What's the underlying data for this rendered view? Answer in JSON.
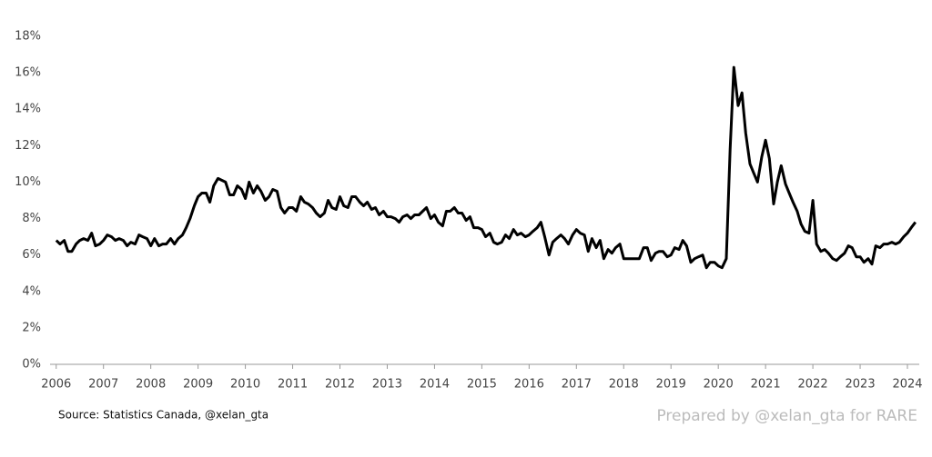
{
  "chart_data": {
    "type": "line",
    "source": "Source: Statistics Canada, @xelan_gta",
    "credit": "Prepared by @xelan_gta for RARE",
    "color": "#000000",
    "xlim": [
      2005.87,
      2024.25
    ],
    "xticks": [
      2006,
      2007,
      2008,
      2009,
      2010,
      2011,
      2012,
      2013,
      2014,
      2015,
      2016,
      2017,
      2018,
      2019,
      2020,
      2021,
      2022,
      2023,
      2024
    ],
    "ylim": [
      0,
      18
    ],
    "yticks": [
      {
        "value": 0,
        "label": "0%"
      },
      {
        "value": 2,
        "label": "2%"
      },
      {
        "value": 4,
        "label": "4%"
      },
      {
        "value": 6,
        "label": "6%"
      },
      {
        "value": 8,
        "label": "8%"
      },
      {
        "value": 10,
        "label": "10%"
      },
      {
        "value": 12,
        "label": "12%"
      },
      {
        "value": 14,
        "label": "14%"
      },
      {
        "value": 16,
        "label": "16%"
      },
      {
        "value": 18,
        "label": "18%"
      }
    ],
    "grid": false,
    "x": [
      2006.0,
      2006.08,
      2006.17,
      2006.25,
      2006.33,
      2006.42,
      2006.5,
      2006.58,
      2006.67,
      2006.75,
      2006.83,
      2006.92,
      2007.0,
      2007.08,
      2007.17,
      2007.25,
      2007.33,
      2007.42,
      2007.5,
      2007.58,
      2007.67,
      2007.75,
      2007.83,
      2007.92,
      2008.0,
      2008.08,
      2008.17,
      2008.25,
      2008.33,
      2008.42,
      2008.5,
      2008.58,
      2008.67,
      2008.75,
      2008.83,
      2008.92,
      2009.0,
      2009.08,
      2009.17,
      2009.25,
      2009.33,
      2009.42,
      2009.5,
      2009.58,
      2009.67,
      2009.75,
      2009.83,
      2009.92,
      2010.0,
      2010.08,
      2010.17,
      2010.25,
      2010.33,
      2010.42,
      2010.5,
      2010.58,
      2010.67,
      2010.75,
      2010.83,
      2010.92,
      2011.0,
      2011.08,
      2011.17,
      2011.25,
      2011.33,
      2011.42,
      2011.5,
      2011.58,
      2011.67,
      2011.75,
      2011.83,
      2011.92,
      2012.0,
      2012.08,
      2012.17,
      2012.25,
      2012.33,
      2012.42,
      2012.5,
      2012.58,
      2012.67,
      2012.75,
      2012.83,
      2012.92,
      2013.0,
      2013.08,
      2013.17,
      2013.25,
      2013.33,
      2013.42,
      2013.5,
      2013.58,
      2013.67,
      2013.75,
      2013.83,
      2013.92,
      2014.0,
      2014.08,
      2014.17,
      2014.25,
      2014.33,
      2014.42,
      2014.5,
      2014.58,
      2014.67,
      2014.75,
      2014.83,
      2014.92,
      2015.0,
      2015.08,
      2015.17,
      2015.25,
      2015.33,
      2015.42,
      2015.5,
      2015.58,
      2015.67,
      2015.75,
      2015.83,
      2015.92,
      2016.0,
      2016.08,
      2016.17,
      2016.25,
      2016.33,
      2016.42,
      2016.5,
      2016.58,
      2016.67,
      2016.75,
      2016.83,
      2016.92,
      2017.0,
      2017.08,
      2017.17,
      2017.25,
      2017.33,
      2017.42,
      2017.5,
      2017.58,
      2017.67,
      2017.75,
      2017.83,
      2017.92,
      2018.0,
      2018.08,
      2018.17,
      2018.25,
      2018.33,
      2018.42,
      2018.5,
      2018.58,
      2018.67,
      2018.75,
      2018.83,
      2018.92,
      2019.0,
      2019.08,
      2019.17,
      2019.25,
      2019.33,
      2019.42,
      2019.5,
      2019.58,
      2019.67,
      2019.75,
      2019.83,
      2019.92,
      2020.0,
      2020.08,
      2020.17,
      2020.25,
      2020.33,
      2020.42,
      2020.5,
      2020.58,
      2020.67,
      2020.75,
      2020.83,
      2020.92,
      2021.0,
      2021.08,
      2021.17,
      2021.25,
      2021.33,
      2021.42,
      2021.5,
      2021.58,
      2021.67,
      2021.75,
      2021.83,
      2021.92,
      2022.0,
      2022.08,
      2022.17,
      2022.25,
      2022.33,
      2022.42,
      2022.5,
      2022.58,
      2022.67,
      2022.75,
      2022.83,
      2022.92,
      2023.0,
      2023.08,
      2023.17,
      2023.25,
      2023.33,
      2023.42,
      2023.5,
      2023.58,
      2023.67,
      2023.75,
      2023.83,
      2023.92,
      2024.0,
      2024.08,
      2024.17
    ],
    "values": [
      6.8,
      6.6,
      6.8,
      6.2,
      6.2,
      6.6,
      6.8,
      6.9,
      6.8,
      7.2,
      6.5,
      6.6,
      6.8,
      7.1,
      7.0,
      6.8,
      6.9,
      6.8,
      6.5,
      6.7,
      6.6,
      7.1,
      7.0,
      6.9,
      6.5,
      6.9,
      6.5,
      6.6,
      6.6,
      6.9,
      6.6,
      6.9,
      7.1,
      7.5,
      8.0,
      8.7,
      9.2,
      9.4,
      9.4,
      8.9,
      9.8,
      10.2,
      10.1,
      10.0,
      9.3,
      9.3,
      9.8,
      9.6,
      9.1,
      10.0,
      9.4,
      9.8,
      9.5,
      9.0,
      9.2,
      9.6,
      9.5,
      8.6,
      8.3,
      8.6,
      8.6,
      8.4,
      9.2,
      8.9,
      8.8,
      8.6,
      8.3,
      8.1,
      8.3,
      9.0,
      8.6,
      8.5,
      9.2,
      8.7,
      8.6,
      9.2,
      9.2,
      8.9,
      8.7,
      8.9,
      8.5,
      8.6,
      8.2,
      8.4,
      8.1,
      8.1,
      8.0,
      7.8,
      8.1,
      8.2,
      8.0,
      8.2,
      8.2,
      8.4,
      8.6,
      8.0,
      8.2,
      7.8,
      7.6,
      8.4,
      8.4,
      8.6,
      8.3,
      8.3,
      7.9,
      8.1,
      7.5,
      7.5,
      7.4,
      7.0,
      7.2,
      6.7,
      6.6,
      6.7,
      7.1,
      6.9,
      7.4,
      7.1,
      7.2,
      7.0,
      7.1,
      7.3,
      7.5,
      7.8,
      7.0,
      6.0,
      6.7,
      6.9,
      7.1,
      6.9,
      6.6,
      7.1,
      7.4,
      7.2,
      7.1,
      6.2,
      6.9,
      6.4,
      6.8,
      5.8,
      6.3,
      6.1,
      6.4,
      6.6,
      5.8,
      5.8,
      5.8,
      5.8,
      5.8,
      6.4,
      6.4,
      5.7,
      6.1,
      6.2,
      6.2,
      5.9,
      6.0,
      6.4,
      6.3,
      6.8,
      6.5,
      5.6,
      5.8,
      5.9,
      6.0,
      5.3,
      5.6,
      5.6,
      5.4,
      5.3,
      5.8,
      11.8,
      16.3,
      14.2,
      14.9,
      12.7,
      11.0,
      10.5,
      10.0,
      11.4,
      12.3,
      11.3,
      8.8,
      10.0,
      10.9,
      9.9,
      9.4,
      8.9,
      8.4,
      7.7,
      7.3,
      7.2,
      9.0,
      6.6,
      6.2,
      6.3,
      6.1,
      5.8,
      5.7,
      5.9,
      6.1,
      6.5,
      6.4,
      5.9,
      5.9,
      5.6,
      5.8,
      5.5,
      6.5,
      6.4,
      6.6,
      6.6,
      6.7,
      6.6,
      6.7,
      7.0,
      7.2,
      7.5,
      7.8
    ]
  }
}
